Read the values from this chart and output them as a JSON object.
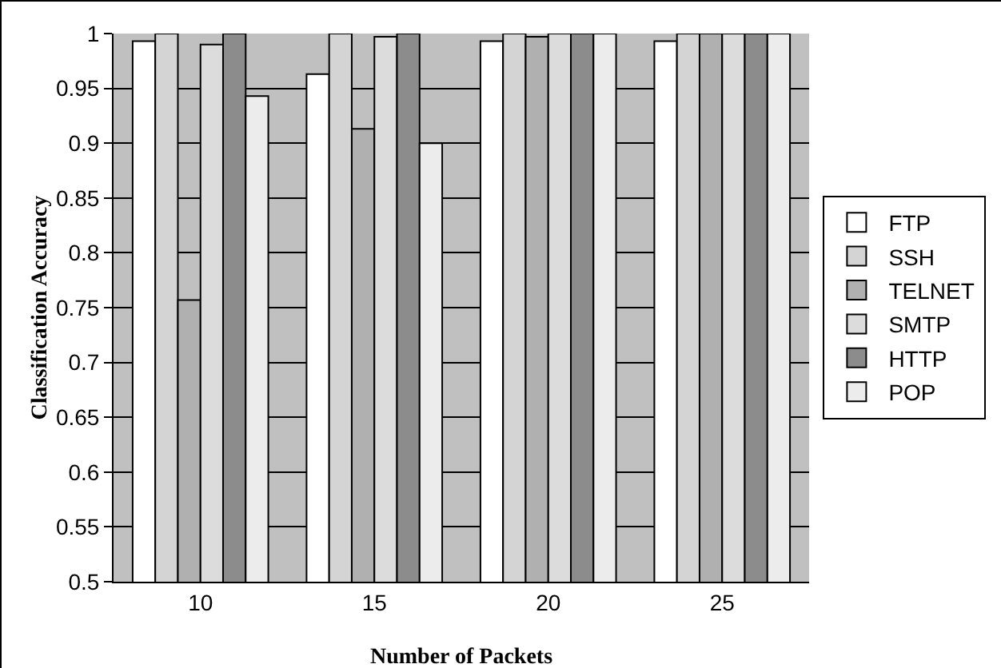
{
  "chart_data": {
    "type": "bar",
    "xlabel": "Number of Packets",
    "ylabel": "Classification Accuracy",
    "categories": [
      "10",
      "15",
      "20",
      "25"
    ],
    "series": [
      {
        "name": "FTP",
        "color": "#ffffff",
        "values": [
          0.993,
          0.963,
          0.993,
          0.993
        ]
      },
      {
        "name": "SSH",
        "color": "#d4d4d4",
        "values": [
          1,
          1,
          1,
          1
        ]
      },
      {
        "name": "TELNET",
        "color": "#b0b0b0",
        "values": [
          0.757,
          0.913,
          0.997,
          1
        ]
      },
      {
        "name": "SMTP",
        "color": "#dcdcdc",
        "values": [
          0.99,
          0.997,
          1,
          1
        ]
      },
      {
        "name": "HTTP",
        "color": "#8c8c8c",
        "values": [
          1,
          1,
          1,
          1
        ]
      },
      {
        "name": "POP",
        "color": "#ececec",
        "values": [
          0.943,
          0.9,
          1,
          1
        ]
      }
    ],
    "ylim": [
      0.5,
      1
    ],
    "yticks": [
      0.5,
      0.55,
      0.6,
      0.65,
      0.7,
      0.75,
      0.8,
      0.85,
      0.9,
      0.95,
      1
    ],
    "grid": "y",
    "legend": "right"
  }
}
